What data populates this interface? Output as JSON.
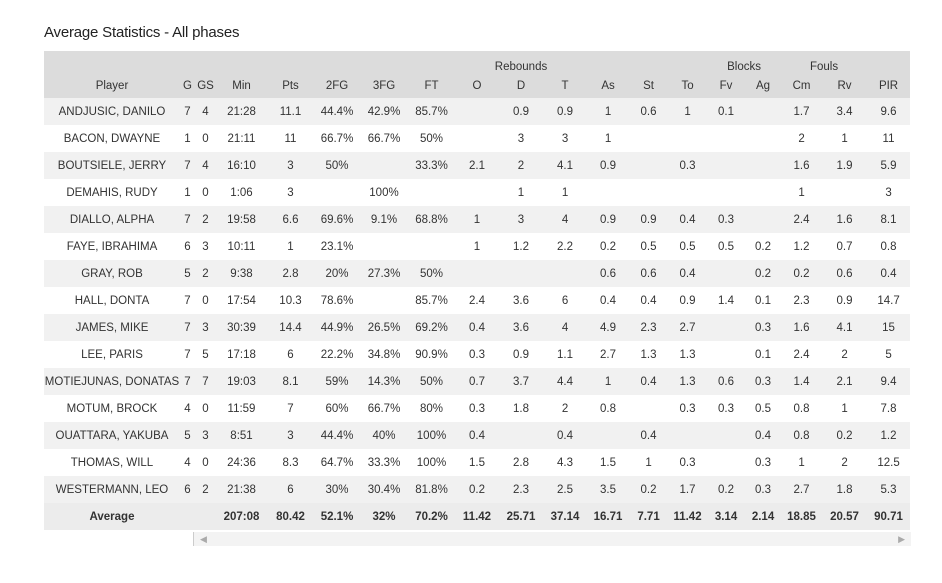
{
  "header": {
    "title": "Average Statistics - All phases"
  },
  "table": {
    "groups": [
      "Rebounds",
      "Blocks",
      "Fouls"
    ],
    "columns": [
      "Player",
      "G",
      "GS",
      "Min",
      "Pts",
      "2FG",
      "3FG",
      "FT",
      "O",
      "D",
      "T",
      "As",
      "St",
      "To",
      "Fv",
      "Ag",
      "Cm",
      "Rv",
      "PIR"
    ],
    "rows": [
      [
        "ANDJUSIC, DANILO",
        "7",
        "4",
        "21:28",
        "11.1",
        "44.4%",
        "42.9%",
        "85.7%",
        null,
        "0.9",
        "0.9",
        "1",
        "0.6",
        "1",
        "0.1",
        null,
        "1.7",
        "3.4",
        "9.6"
      ],
      [
        "BACON, DWAYNE",
        "1",
        "0",
        "21:11",
        "11",
        "66.7%",
        "66.7%",
        "50%",
        null,
        "3",
        "3",
        "1",
        null,
        null,
        null,
        null,
        "2",
        "1",
        "11"
      ],
      [
        "BOUTSIELE, JERRY",
        "7",
        "4",
        "16:10",
        "3",
        "50%",
        null,
        "33.3%",
        "2.1",
        "2",
        "4.1",
        "0.9",
        null,
        "0.3",
        null,
        null,
        "1.6",
        "1.9",
        "5.9"
      ],
      [
        "DEMAHIS, RUDY",
        "1",
        "0",
        "1:06",
        "3",
        null,
        "100%",
        null,
        null,
        "1",
        "1",
        null,
        null,
        null,
        null,
        null,
        "1",
        null,
        "3"
      ],
      [
        "DIALLO, ALPHA",
        "7",
        "2",
        "19:58",
        "6.6",
        "69.6%",
        "9.1%",
        "68.8%",
        "1",
        "3",
        "4",
        "0.9",
        "0.9",
        "0.4",
        "0.3",
        null,
        "2.4",
        "1.6",
        "8.1"
      ],
      [
        "FAYE, IBRAHIMA",
        "6",
        "3",
        "10:11",
        "1",
        "23.1%",
        null,
        null,
        "1",
        "1.2",
        "2.2",
        "0.2",
        "0.5",
        "0.5",
        "0.5",
        "0.2",
        "1.2",
        "0.7",
        "0.8"
      ],
      [
        "GRAY, ROB",
        "5",
        "2",
        "9:38",
        "2.8",
        "20%",
        "27.3%",
        "50%",
        null,
        null,
        null,
        "0.6",
        "0.6",
        "0.4",
        null,
        "0.2",
        "0.2",
        "0.6",
        "0.4"
      ],
      [
        "HALL, DONTA",
        "7",
        "0",
        "17:54",
        "10.3",
        "78.6%",
        null,
        "85.7%",
        "2.4",
        "3.6",
        "6",
        "0.4",
        "0.4",
        "0.9",
        "1.4",
        "0.1",
        "2.3",
        "0.9",
        "14.7"
      ],
      [
        "JAMES, MIKE",
        "7",
        "3",
        "30:39",
        "14.4",
        "44.9%",
        "26.5%",
        "69.2%",
        "0.4",
        "3.6",
        "4",
        "4.9",
        "2.3",
        "2.7",
        null,
        "0.3",
        "1.6",
        "4.1",
        "15"
      ],
      [
        "LEE, PARIS",
        "7",
        "5",
        "17:18",
        "6",
        "22.2%",
        "34.8%",
        "90.9%",
        "0.3",
        "0.9",
        "1.1",
        "2.7",
        "1.3",
        "1.3",
        null,
        "0.1",
        "2.4",
        "2",
        "5"
      ],
      [
        "MOTIEJUNAS, DONATAS",
        "7",
        "7",
        "19:03",
        "8.1",
        "59%",
        "14.3%",
        "50%",
        "0.7",
        "3.7",
        "4.4",
        "1",
        "0.4",
        "1.3",
        "0.6",
        "0.3",
        "1.4",
        "2.1",
        "9.4"
      ],
      [
        "MOTUM, BROCK",
        "4",
        "0",
        "11:59",
        "7",
        "60%",
        "66.7%",
        "80%",
        "0.3",
        "1.8",
        "2",
        "0.8",
        null,
        "0.3",
        "0.3",
        "0.5",
        "0.8",
        "1",
        "7.8"
      ],
      [
        "OUATTARA, YAKUBA",
        "5",
        "3",
        "8:51",
        "3",
        "44.4%",
        "40%",
        "100%",
        "0.4",
        null,
        "0.4",
        null,
        "0.4",
        null,
        null,
        "0.4",
        "0.8",
        "0.2",
        "1.2"
      ],
      [
        "THOMAS, WILL",
        "4",
        "0",
        "24:36",
        "8.3",
        "64.7%",
        "33.3%",
        "100%",
        "1.5",
        "2.8",
        "4.3",
        "1.5",
        "1",
        "0.3",
        null,
        "0.3",
        "1",
        "2",
        "12.5"
      ],
      [
        "WESTERMANN, LEO",
        "6",
        "2",
        "21:38",
        "6",
        "30%",
        "30.4%",
        "81.8%",
        "0.2",
        "2.3",
        "2.5",
        "3.5",
        "0.2",
        "1.7",
        "0.2",
        "0.3",
        "2.7",
        "1.8",
        "5.3"
      ]
    ],
    "footer": [
      "Average",
      null,
      null,
      "207:08",
      "80.42",
      "52.1%",
      "32%",
      "70.2%",
      "11.42",
      "25.71",
      "37.14",
      "16.71",
      "7.71",
      "11.42",
      "3.14",
      "2.14",
      "18.85",
      "20.57",
      "90.71"
    ]
  }
}
